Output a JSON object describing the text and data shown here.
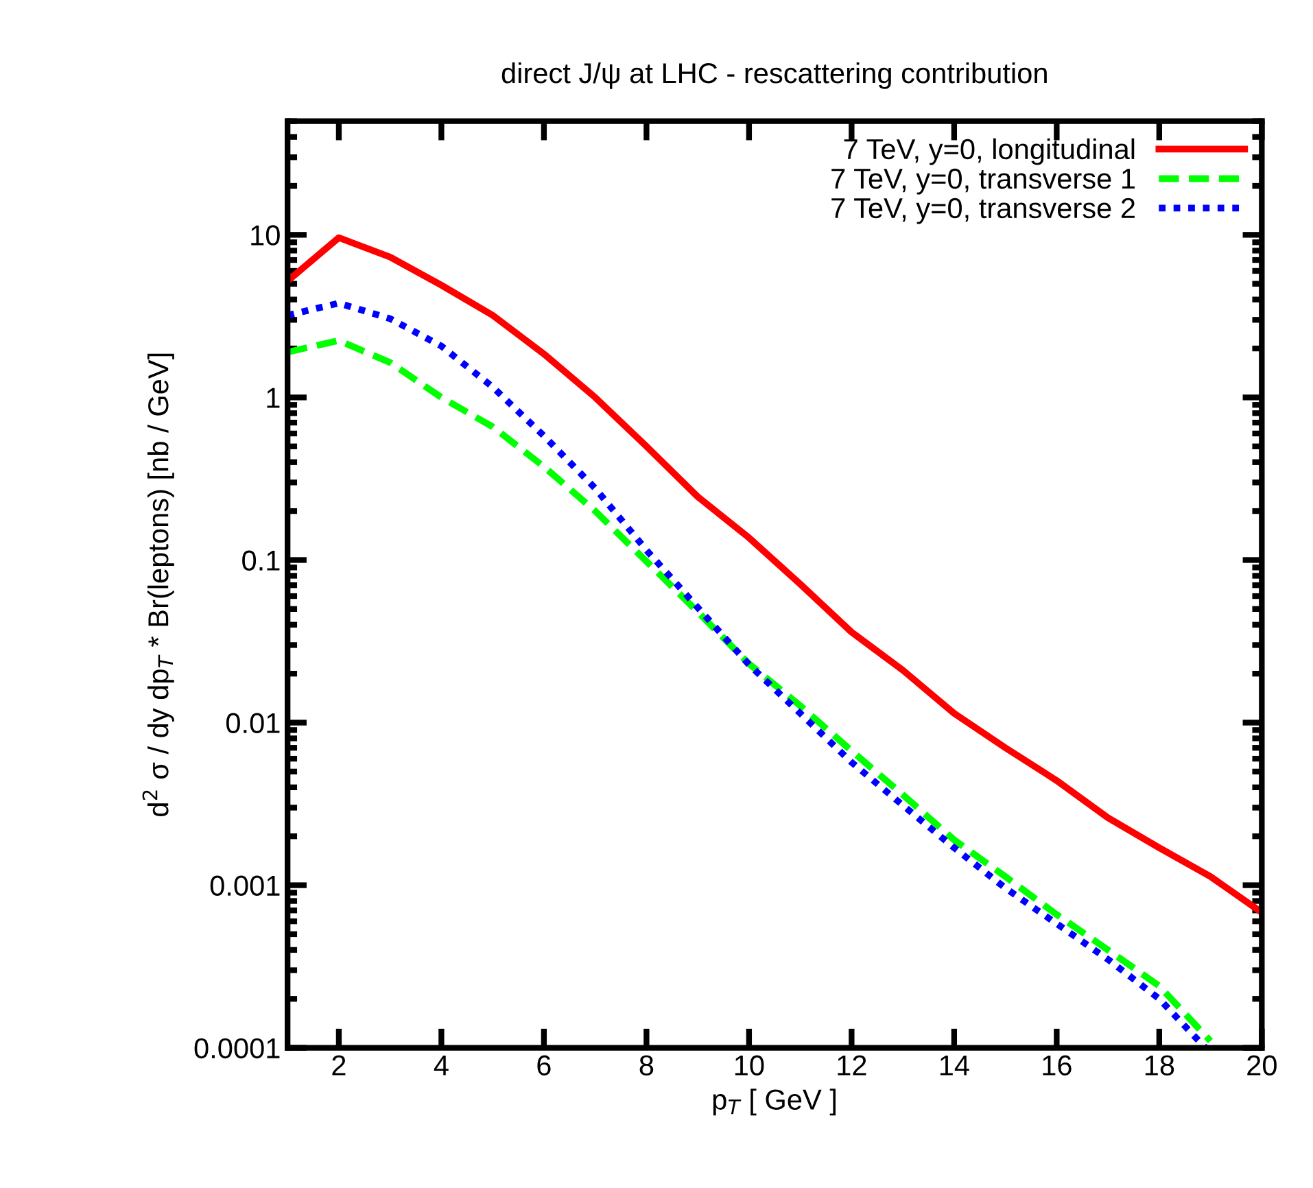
{
  "chart_data": {
    "type": "line",
    "title": "direct J/ψ at LHC - rescattering contribution",
    "xlabel": "p$_{T}$ [ GeV ]",
    "ylabel": "d$^{2}$ σ / dy dp$_{T}$ * Br(leptons) [nb / GeV]",
    "log": "y",
    "xlim": [
      1,
      20
    ],
    "xticks": [
      2,
      4,
      6,
      8,
      10,
      12,
      14,
      16,
      18,
      20
    ],
    "ylim": [
      0.0001,
      50
    ],
    "yticks": [
      {
        "value": 0.0001,
        "label": "0.0001"
      },
      {
        "value": 0.001,
        "label": "0.001"
      },
      {
        "value": 0.01,
        "label": "0.01"
      },
      {
        "value": 0.1,
        "label": "0.1"
      },
      1,
      10
    ],
    "legend": "top right",
    "grid": false,
    "series": [
      {
        "name": "7 TeV, y=0, longitudinal",
        "color": "#ff0000",
        "line_style": "solid",
        "x": [
          1,
          2,
          3,
          4,
          5,
          6,
          7,
          8,
          9,
          10,
          11,
          12,
          13,
          14,
          15,
          16,
          17,
          18,
          19,
          20
        ],
        "values": [
          5.2,
          9.6,
          7.3,
          4.9,
          3.2,
          1.85,
          1.0,
          0.5,
          0.245,
          0.137,
          0.071,
          0.036,
          0.021,
          0.0114,
          0.007,
          0.0044,
          0.0026,
          0.0017,
          0.00113,
          0.00068
        ]
      },
      {
        "name": "7 TeV, y=0, transverse 1",
        "color": "#00ff00",
        "line_style": "dashed",
        "x": [
          1,
          2,
          3,
          4,
          5,
          6,
          7,
          8,
          9,
          10,
          11,
          12,
          13,
          14,
          15,
          16,
          17,
          18,
          19
        ],
        "values": [
          1.9,
          2.24,
          1.64,
          1.0,
          0.66,
          0.375,
          0.2,
          0.098,
          0.048,
          0.023,
          0.0127,
          0.0067,
          0.0036,
          0.0019,
          0.00113,
          0.00066,
          0.0004,
          0.00024,
          0.00011
        ]
      },
      {
        "name": "7 TeV, y=0, transverse 2",
        "color": "#0000ff",
        "line_style": "dotted",
        "x": [
          1,
          2,
          3,
          4,
          5,
          6,
          7,
          8,
          9,
          10,
          11,
          12,
          13,
          14,
          15,
          16,
          17,
          18,
          18.9
        ],
        "values": [
          3.2,
          3.8,
          3.05,
          2.07,
          1.16,
          0.58,
          0.276,
          0.115,
          0.051,
          0.0227,
          0.0114,
          0.0057,
          0.0031,
          0.0017,
          0.00096,
          0.00058,
          0.00035,
          0.0002,
          0.0001
        ]
      }
    ]
  }
}
